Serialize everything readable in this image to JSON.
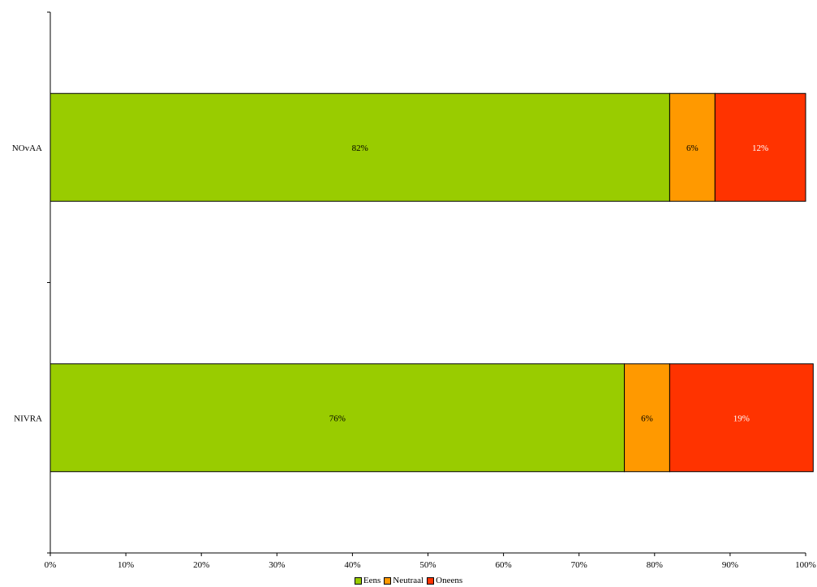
{
  "chart_data": {
    "type": "bar",
    "orientation": "horizontal",
    "stacked": true,
    "categories": [
      "NOvAA",
      "NIVRA"
    ],
    "series": [
      {
        "name": "Eens",
        "color": "#99cc00",
        "values": [
          82,
          76
        ],
        "labels": [
          "82%",
          "76%"
        ],
        "label_color": "#000000"
      },
      {
        "name": "Neutraal",
        "color": "#ff9900",
        "values": [
          6,
          6
        ],
        "labels": [
          "6%",
          "6%"
        ],
        "label_color": "#000000"
      },
      {
        "name": "Oneens",
        "color": "#ff3300",
        "values": [
          12,
          19
        ],
        "labels": [
          "12%",
          "19%"
        ],
        "label_color": "#ffffff"
      }
    ],
    "x_ticks": [
      "0%",
      "10%",
      "20%",
      "30%",
      "40%",
      "50%",
      "60%",
      "70%",
      "80%",
      "90%",
      "100%"
    ],
    "xlim": [
      0,
      100
    ],
    "grid": false,
    "legend_position": "bottom-center"
  }
}
